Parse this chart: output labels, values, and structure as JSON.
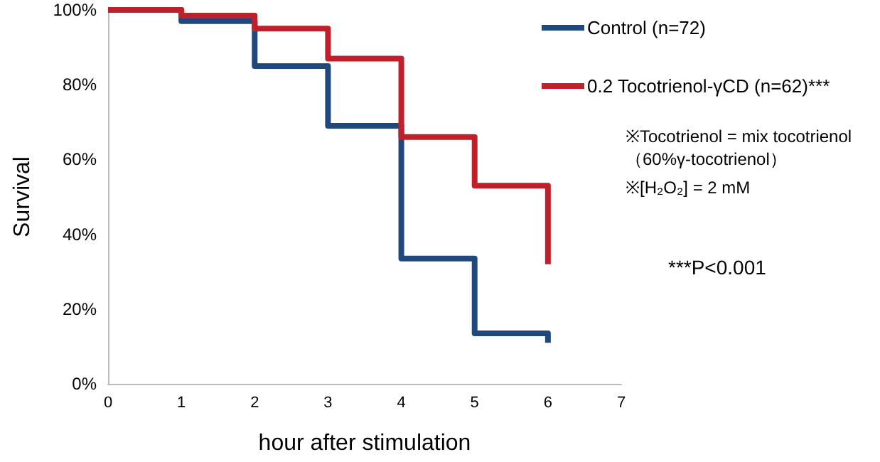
{
  "chart_data": {
    "type": "step",
    "xlabel": "hour after stimulation",
    "ylabel": "Survival",
    "x": [
      0,
      1,
      2,
      3,
      4,
      5,
      6
    ],
    "series": [
      {
        "name": "Control (n=72)",
        "color": "#1f497d",
        "values": [
          100,
          97,
          85,
          69,
          33.5,
          13.5,
          11
        ]
      },
      {
        "name": "0.2 Tocotrienol-γCD (n=62)***",
        "color": "#c0202a",
        "values": [
          100,
          98.5,
          95,
          87,
          66,
          53,
          32
        ]
      }
    ],
    "xlim": [
      0,
      7
    ],
    "xticks": [
      0,
      1,
      2,
      3,
      4,
      5,
      6,
      7
    ],
    "ylim": [
      0,
      100
    ],
    "yticks": [
      {
        "value": 0,
        "label": "0%"
      },
      {
        "value": 20,
        "label": "20%"
      },
      {
        "value": 40,
        "label": "40%"
      },
      {
        "value": 60,
        "label": "60%"
      },
      {
        "value": 80,
        "label": "80%"
      },
      {
        "value": 100,
        "label": "100%"
      }
    ],
    "legend": "top right",
    "line_style": "solid",
    "annotations": [
      "※Tocotrienol = mix tocotrienol\n（60%γ-tocotrienol）",
      "※[H₂O₂] = 2 mM",
      "***P<0.001"
    ]
  }
}
